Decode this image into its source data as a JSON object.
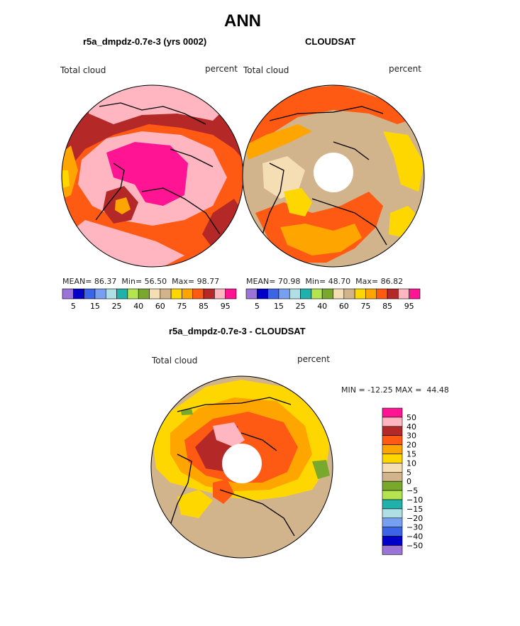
{
  "page": {
    "title": "ANN",
    "panel_left_title": "r5a_dmpdz-0.7e-3 (yrs 0002)",
    "panel_right_title": "CLOUDSAT",
    "panel_diff_title": "r5a_dmpdz-0.7e-3 - CLOUDSAT"
  },
  "chart_data": [
    {
      "type": "heatmap",
      "projection": "north-polar-stereographic",
      "title": "r5a_dmpdz-0.7e-3 (yrs 0002)",
      "variable": "Total cloud",
      "units": "percent",
      "stats": {
        "mean_label": "MEAN=",
        "mean": "86.37",
        "min_label": "Min=",
        "min": "56.50",
        "max_label": "Max=",
        "max": "98.77"
      },
      "colorbar_ticks": [
        "5",
        "15",
        "25",
        "40",
        "60",
        "75",
        "85",
        "95"
      ],
      "colorbar_colors": [
        "#9a74d6",
        "#0000c8",
        "#3c64e6",
        "#78a0f0",
        "#b0e0e6",
        "#20b2aa",
        "#b4e450",
        "#78a82c",
        "#f5deb3",
        "#d2b48c",
        "#ffd700",
        "#ffa500",
        "#ff5a14",
        "#b42828",
        "#ffb6c1",
        "#ff1493"
      ]
    },
    {
      "type": "heatmap",
      "projection": "north-polar-stereographic",
      "title": "CLOUDSAT",
      "variable": "Total cloud",
      "units": "percent",
      "stats": {
        "mean_label": "MEAN=",
        "mean": "70.98",
        "min_label": "Min=",
        "min": "48.70",
        "max_label": "Max=",
        "max": "86.82"
      },
      "colorbar_ticks": [
        "5",
        "15",
        "25",
        "40",
        "60",
        "75",
        "85",
        "95"
      ],
      "colorbar_colors": [
        "#9a74d6",
        "#0000c8",
        "#3c64e6",
        "#78a0f0",
        "#b0e0e6",
        "#20b2aa",
        "#b4e450",
        "#78a82c",
        "#f5deb3",
        "#d2b48c",
        "#ffd700",
        "#ffa500",
        "#ff5a14",
        "#b42828",
        "#ffb6c1",
        "#ff1493"
      ]
    },
    {
      "type": "heatmap",
      "projection": "north-polar-stereographic",
      "title": "r5a_dmpdz-0.7e-3 - CLOUDSAT",
      "variable": "Total cloud",
      "units": "percent",
      "stats": {
        "min_label": "MIN =",
        "min": "-12.25",
        "max_label": "MAX =",
        "max": "44.48"
      },
      "legend": {
        "levels": [
          "50",
          "40",
          "30",
          "20",
          "15",
          "10",
          "5",
          "0",
          "-5",
          "-10",
          "-15",
          "-20",
          "-30",
          "-40",
          "-50"
        ],
        "colors": [
          "#ff1493",
          "#ffb6c1",
          "#b42828",
          "#ff5a14",
          "#ffa500",
          "#ffd700",
          "#f5deb3",
          "#d2b48c",
          "#78a82c",
          "#b4e450",
          "#20b2aa",
          "#b0e0e6",
          "#78a0f0",
          "#3c64e6",
          "#0000c8",
          "#9a74d6"
        ]
      }
    }
  ],
  "labels": {
    "total_cloud": "Total cloud",
    "percent": "percent"
  }
}
